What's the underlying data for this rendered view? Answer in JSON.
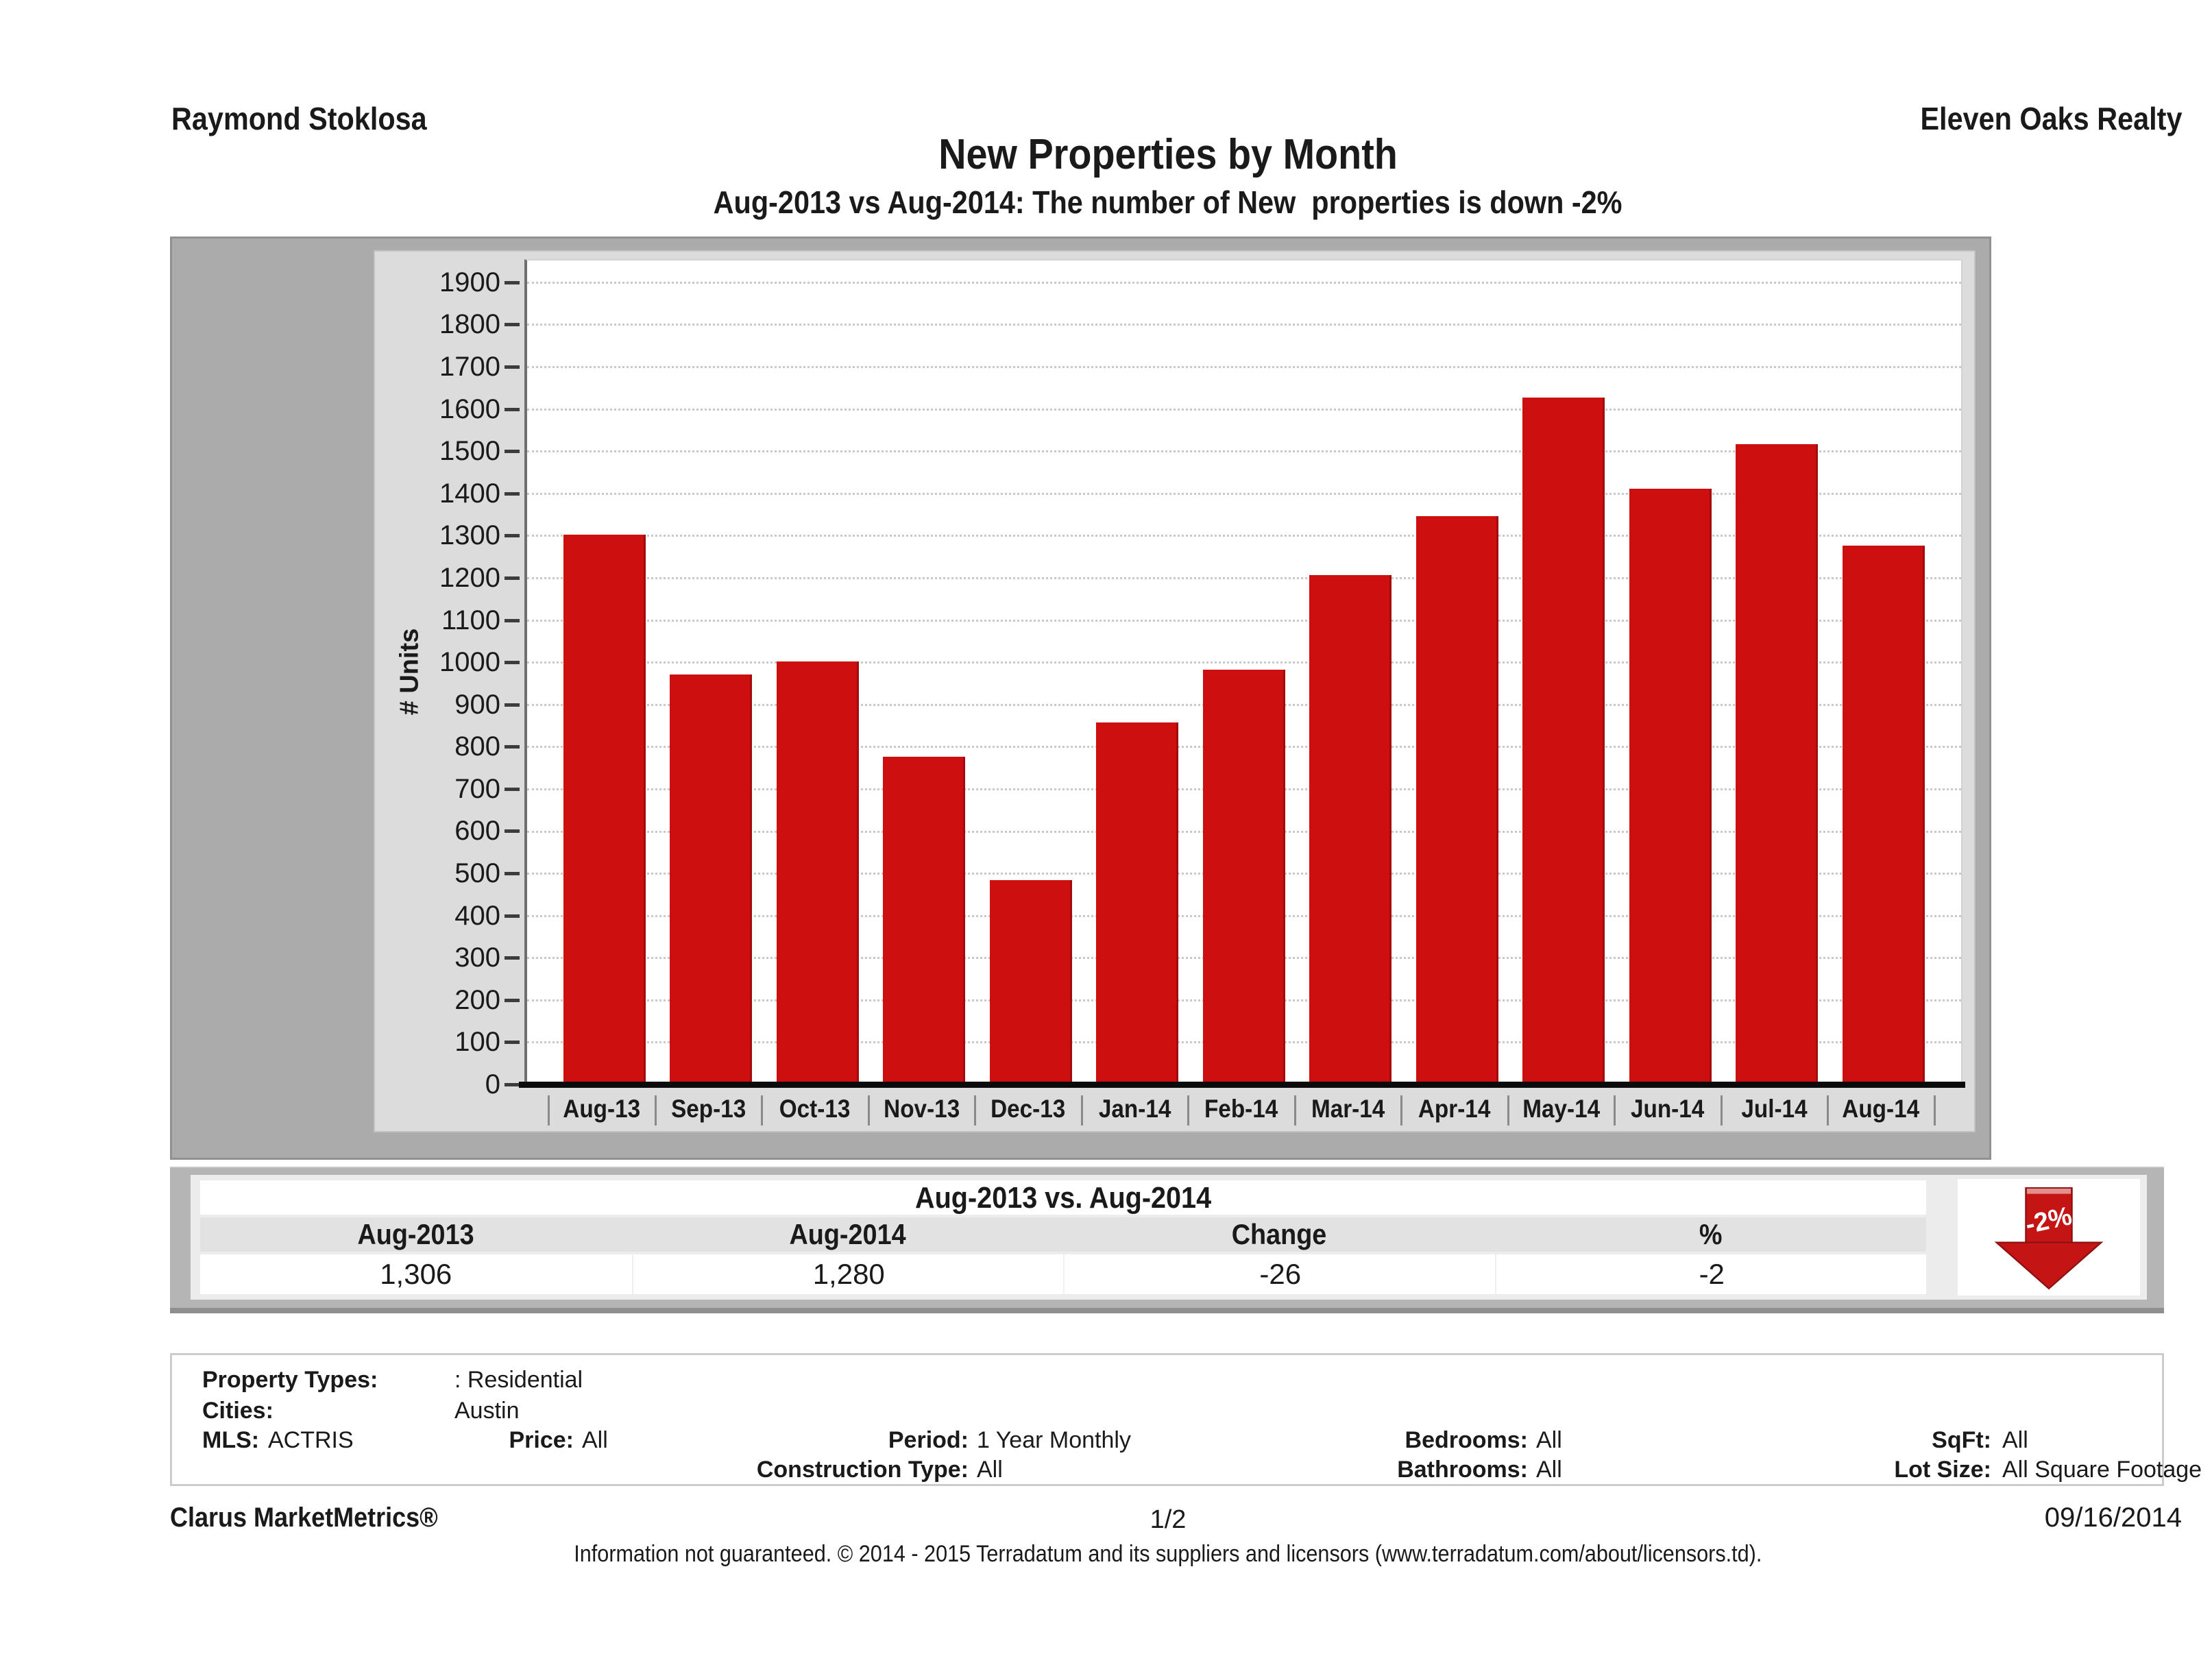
{
  "header": {
    "agent_name": "Raymond Stoklosa",
    "company_name": "Eleven Oaks Realty",
    "title": "New Properties by Month",
    "subtitle": "Aug-2013 vs Aug-2014: The number of New  properties is down -2%"
  },
  "chart_data": {
    "type": "bar",
    "title": "New Properties by Month",
    "categories": [
      "Aug-13",
      "Sep-13",
      "Oct-13",
      "Nov-13",
      "Dec-13",
      "Jan-14",
      "Feb-14",
      "Mar-14",
      "Apr-14",
      "May-14",
      "Jun-14",
      "Jul-14",
      "Aug-14"
    ],
    "values": [
      1306,
      975,
      1005,
      780,
      487,
      860,
      985,
      1210,
      1350,
      1630,
      1415,
      1520,
      1280
    ],
    "xlabel": "",
    "ylabel": "# Units",
    "ylim": [
      0,
      1955
    ],
    "ytick_step": 100,
    "ytick_max": 1900,
    "bar_color": "#ce0f0f",
    "grid": "horizontal dotted, every 100 units",
    "legend": "none"
  },
  "summary_table": {
    "title": "Aug-2013 vs. Aug-2014",
    "columns": [
      "Aug-2013",
      "Aug-2014",
      "Change",
      "%"
    ],
    "values": [
      "1,306",
      "1,280",
      "-26",
      "-2"
    ],
    "arrow": {
      "label": "-2%",
      "direction": "down",
      "color": "#c41414"
    }
  },
  "filters": {
    "property_types_label": "Property Types:",
    "property_types_value": ": Residential",
    "cities_label": "Cities:",
    "cities_value": "Austin",
    "mls_label": "MLS:",
    "mls_value": "ACTRIS",
    "price_label": "Price:",
    "price_value": "All",
    "period_label": "Period:",
    "period_value": "1 Year Monthly",
    "construction_label": "Construction Type:",
    "construction_value": "All",
    "bedrooms_label": "Bedrooms:",
    "bedrooms_value": "All",
    "bathrooms_label": "Bathrooms:",
    "bathrooms_value": "All",
    "sqft_label": "SqFt:",
    "sqft_value": "All",
    "lot_size_label": "Lot Size:",
    "lot_size_value": "All Square Footage"
  },
  "footer": {
    "brand": "Clarus MarketMetrics®",
    "page_number": "1/2",
    "date": "09/16/2014",
    "disclaimer": "Information not guaranteed. © 2014 - 2015 Terradatum and its suppliers and licensors (www.terradatum.com/about/licensors.td)."
  }
}
